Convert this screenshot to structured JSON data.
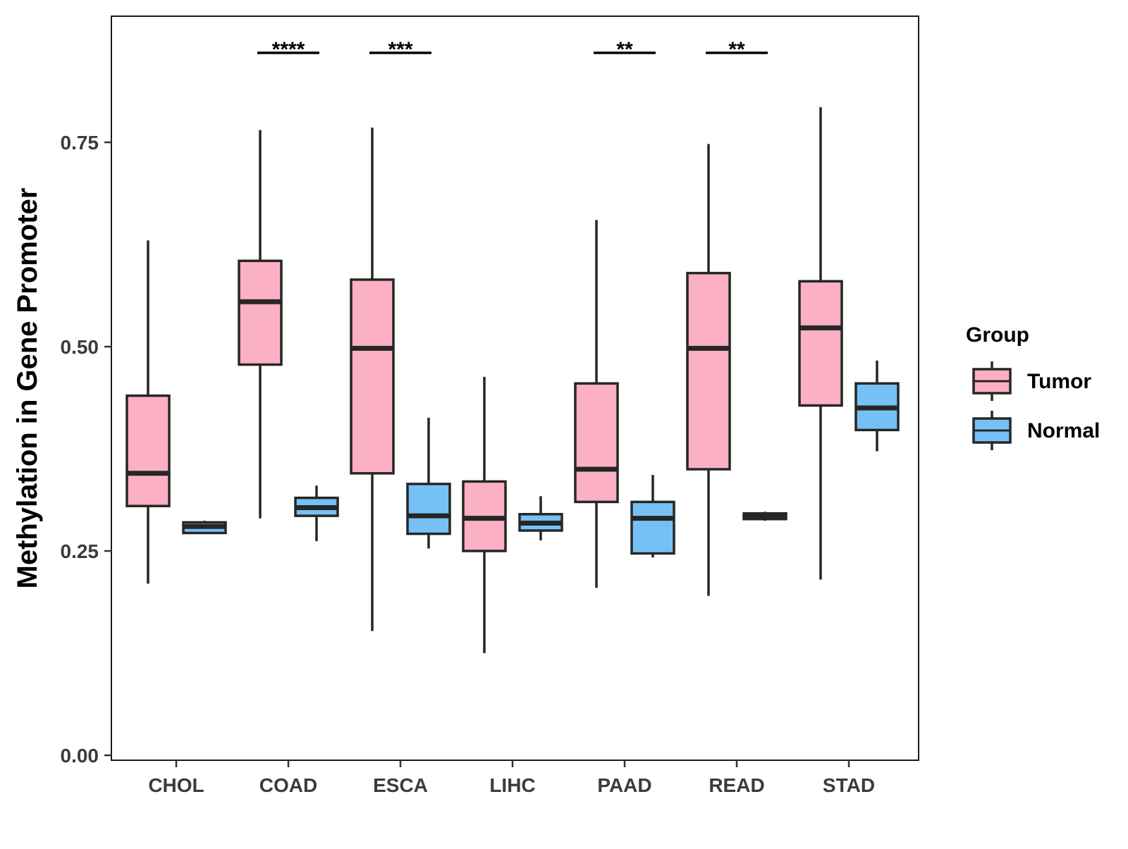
{
  "chart_data": {
    "type": "box",
    "title": "",
    "xlabel": "",
    "ylabel": "Methylation in Gene Promoter",
    "ylim": [
      0.0,
      0.9
    ],
    "y_ticks": [
      0.0,
      0.25,
      0.5,
      0.75
    ],
    "y_tick_labels": [
      "0.00",
      "0.25",
      "0.50",
      "0.75"
    ],
    "categories": [
      "CHOL",
      "COAD",
      "ESCA",
      "LIHC",
      "PAAD",
      "READ",
      "STAD"
    ],
    "legend": {
      "title": "Group",
      "position": "right",
      "entries": [
        "Tumor",
        "Normal"
      ]
    },
    "series": [
      {
        "name": "Tumor",
        "color": "#FCB0C3",
        "boxes": [
          {
            "category": "CHOL",
            "min": 0.21,
            "q1": 0.305,
            "median": 0.345,
            "q3": 0.44,
            "max": 0.63
          },
          {
            "category": "COAD",
            "min": 0.29,
            "q1": 0.478,
            "median": 0.555,
            "q3": 0.605,
            "max": 0.765
          },
          {
            "category": "ESCA",
            "min": 0.152,
            "q1": 0.345,
            "median": 0.498,
            "q3": 0.582,
            "max": 0.768
          },
          {
            "category": "LIHC",
            "min": 0.125,
            "q1": 0.25,
            "median": 0.29,
            "q3": 0.335,
            "max": 0.463
          },
          {
            "category": "PAAD",
            "min": 0.205,
            "q1": 0.31,
            "median": 0.35,
            "q3": 0.455,
            "max": 0.655
          },
          {
            "category": "READ",
            "min": 0.195,
            "q1": 0.35,
            "median": 0.498,
            "q3": 0.59,
            "max": 0.748
          },
          {
            "category": "STAD",
            "min": 0.215,
            "q1": 0.428,
            "median": 0.523,
            "q3": 0.58,
            "max": 0.793
          }
        ]
      },
      {
        "name": "Normal",
        "color": "#75C1F6",
        "boxes": [
          {
            "category": "CHOL",
            "min": 0.272,
            "q1": 0.272,
            "median": 0.28,
            "q3": 0.285,
            "max": 0.287
          },
          {
            "category": "COAD",
            "min": 0.262,
            "q1": 0.293,
            "median": 0.303,
            "q3": 0.315,
            "max": 0.33
          },
          {
            "category": "ESCA",
            "min": 0.253,
            "q1": 0.271,
            "median": 0.293,
            "q3": 0.332,
            "max": 0.413
          },
          {
            "category": "LIHC",
            "min": 0.263,
            "q1": 0.275,
            "median": 0.284,
            "q3": 0.295,
            "max": 0.317
          },
          {
            "category": "PAAD",
            "min": 0.242,
            "q1": 0.247,
            "median": 0.29,
            "q3": 0.31,
            "max": 0.343
          },
          {
            "category": "READ",
            "min": 0.287,
            "q1": 0.289,
            "median": 0.292,
            "q3": 0.296,
            "max": 0.298
          },
          {
            "category": "STAD",
            "min": 0.372,
            "q1": 0.398,
            "median": 0.425,
            "q3": 0.455,
            "max": 0.483
          }
        ]
      }
    ],
    "annotations": [
      {
        "category": "COAD",
        "label": "****"
      },
      {
        "category": "ESCA",
        "label": "***"
      },
      {
        "category": "PAAD",
        "label": "**"
      },
      {
        "category": "READ",
        "label": "**"
      }
    ]
  }
}
